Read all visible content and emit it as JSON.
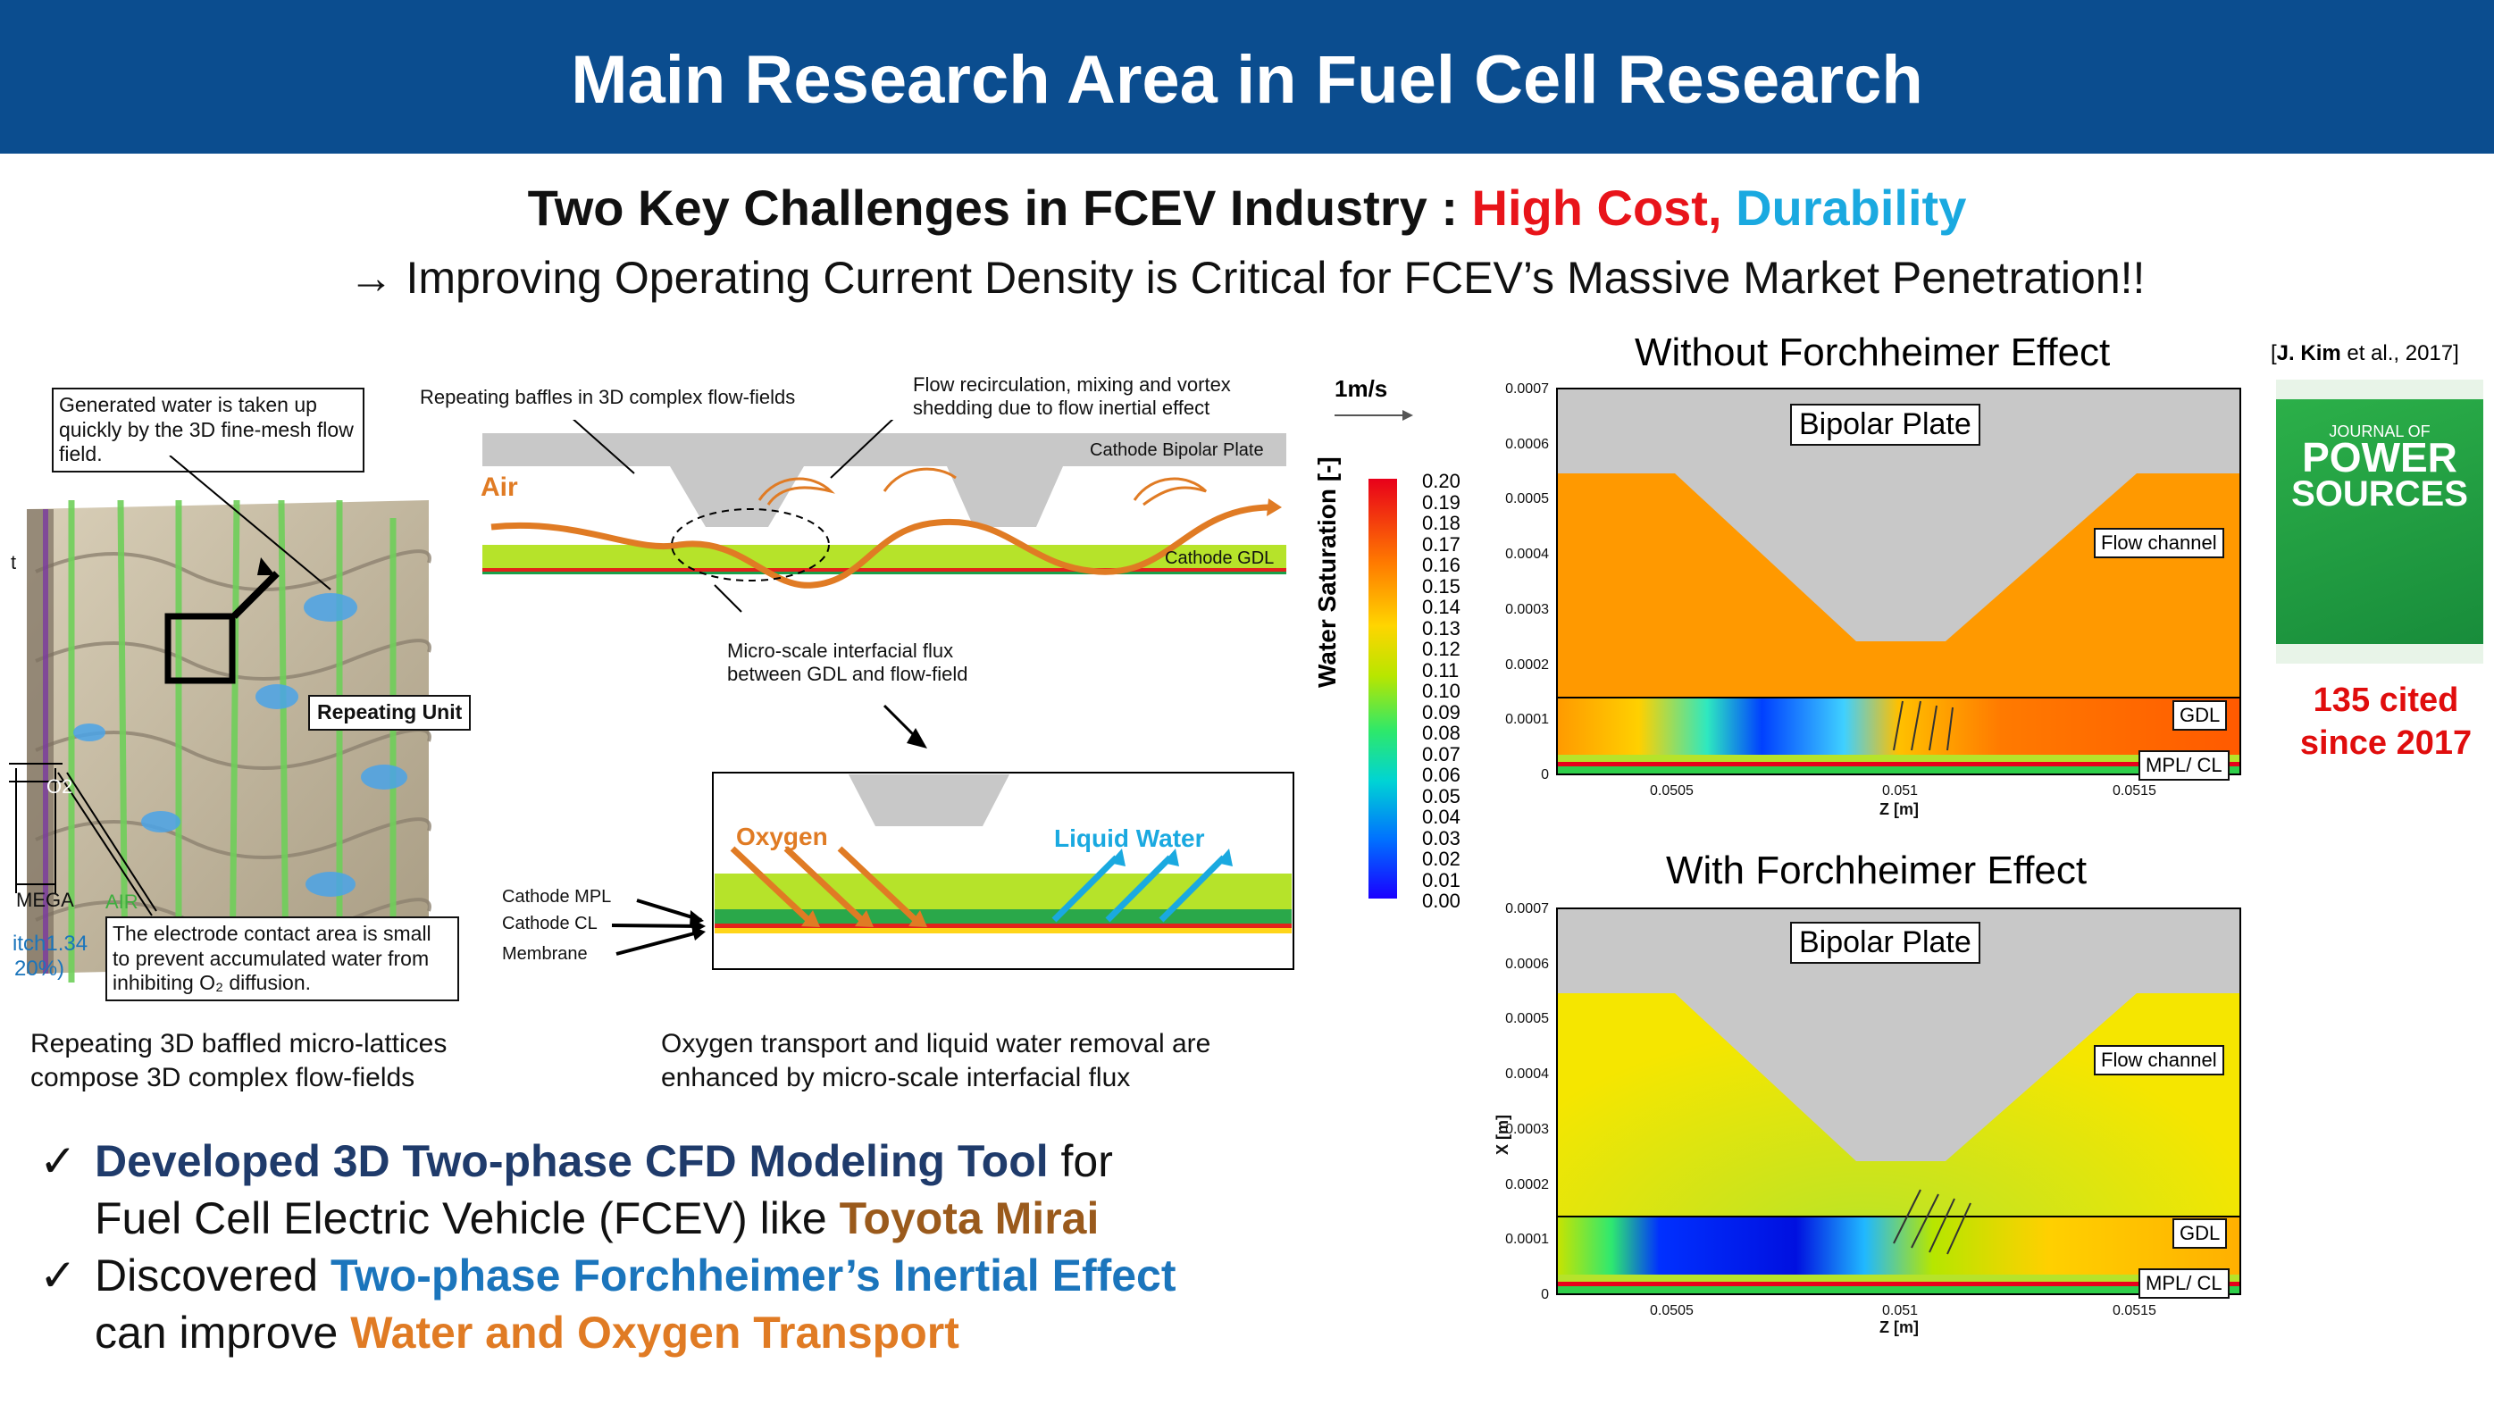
{
  "header": {
    "title": "Main Research Area in Fuel Cell Research"
  },
  "subtitle": {
    "prefix": "Two Key Challenges in FCEV Industry : ",
    "cost": "High Cost,",
    "durability": "Durability",
    "line2": "→ Improving Operating Current Density is Critical for FCEV’s Massive Market Penetration!!"
  },
  "colors": {
    "header_bg": "#0b4d8f",
    "cost": "#e8141a",
    "durability": "#1aa9e0",
    "navy": "#1f3b6b",
    "brown": "#9a5a1c",
    "blue": "#1b75bc",
    "orange": "#e07b24",
    "cite_red": "#e00d0d"
  },
  "left_panel": {
    "callout_top": "Generated water is taken up quickly by the 3D fine-mesh flow field.",
    "repeating_unit": "Repeating Unit",
    "callout_bottom": "The electrode contact area is small to prevent accumulated water from inhibiting O₂ diffusion.",
    "lbl_o2": "O2",
    "lbl_mega": "MEGA",
    "lbl_air": "AIR",
    "lbl_pitch": "itch1.34",
    "lbl_pct": "20%)",
    "lbl_t": "t",
    "caption": "Repeating 3D baffled micro-lattices compose 3D complex flow-fields"
  },
  "mid_panel": {
    "baffles": "Repeating baffles in 3D complex flow-fields",
    "recirculation": "Flow recirculation, mixing and vortex shedding due to flow inertial effect",
    "bipolar": "Cathode Bipolar Plate",
    "air": "Air",
    "gdl": "Cathode GDL",
    "interfacial": "Micro-scale interfacial flux between GDL and flow-field",
    "oxygen": "Oxygen",
    "liquid_water": "Liquid Water",
    "mpl": "Cathode MPL",
    "cl": "Cathode CL",
    "membrane": "Membrane",
    "caption": "Oxygen transport and liquid water removal are enhanced by micro-scale interfacial flux"
  },
  "colorbar": {
    "velocity": "1m/s",
    "title": "Water Saturation [-]",
    "ticks": [
      "0.20",
      "0.19",
      "0.18",
      "0.17",
      "0.16",
      "0.15",
      "0.14",
      "0.13",
      "0.12",
      "0.11",
      "0.10",
      "0.09",
      "0.08",
      "0.07",
      "0.06",
      "0.05",
      "0.04",
      "0.03",
      "0.02",
      "0.01",
      "0.00"
    ]
  },
  "plots": [
    {
      "title": "Without Forchheimer  Effect",
      "bipolar": "Bipolar Plate",
      "flow_channel": "Flow channel",
      "gdl": "GDL",
      "mpl": "MPL/ CL",
      "xlabel": "Z [m]",
      "ylabel": "",
      "yticks": [
        "0.0007",
        "0.0006",
        "0.0005",
        "0.0004",
        "0.0003",
        "0.0002",
        "0.0001",
        "0"
      ],
      "xticks": [
        "0.0505",
        "0.051",
        "0.0515"
      ]
    },
    {
      "title": "With Forchheimer  Effect",
      "bipolar": "Bipolar Plate",
      "flow_channel": "Flow channel",
      "gdl": "GDL",
      "mpl": "MPL/ CL",
      "xlabel": "Z [m]",
      "ylabel": "X [m]",
      "yticks": [
        "0.0007",
        "0.0006",
        "0.0005",
        "0.0004",
        "0.0003",
        "0.0002",
        "0.0001",
        "0"
      ],
      "xticks": [
        "0.0505",
        "0.051",
        "0.0515"
      ]
    }
  ],
  "citation": {
    "ref_name": "J. Kim",
    "ref_rest": " et al., 2017]",
    "ref_open": "[",
    "journal_top": "JOURNAL OF",
    "journal_main1": "POWER",
    "journal_main2": "SOURCES",
    "cited1": "135 cited",
    "cited2": "since 2017"
  },
  "bullets": [
    {
      "check": "✓",
      "highlight": "Developed 3D Two-phase CFD Modeling Tool",
      "mid": " for",
      "line2a": "Fuel Cell Electric Vehicle (FCEV) like ",
      "line2b": "Toyota Mirai"
    },
    {
      "check": "✓",
      "prefix": "Discovered ",
      "highlight": "Two-phase Forchheimer’s Inertial Effect",
      "line2a": "can improve ",
      "line2b": "Water and Oxygen Transport"
    }
  ]
}
